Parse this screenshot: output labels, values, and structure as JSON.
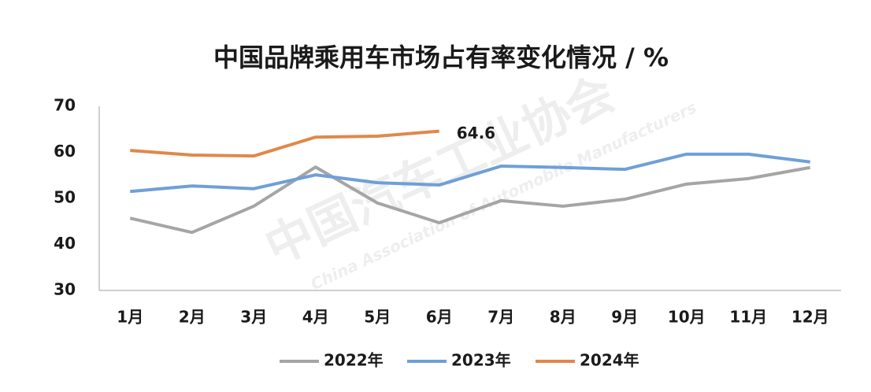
{
  "chart_data": {
    "type": "line",
    "title": "中国品牌乘用车市场占有率变化情况 / %",
    "watermark": [
      "中国汽车工业协会",
      "China Association of Automobile Manufacturers"
    ],
    "categories": [
      "1月",
      "2月",
      "3月",
      "4月",
      "5月",
      "6月",
      "7月",
      "8月",
      "9月",
      "10月",
      "11月",
      "12月"
    ],
    "series": [
      {
        "name": "2022年",
        "color": "#a5a5a5",
        "values": [
          45.7,
          42.6,
          48.3,
          56.8,
          49.0,
          44.7,
          49.5,
          48.3,
          49.8,
          53.1,
          54.3,
          56.7
        ]
      },
      {
        "name": "2023年",
        "color": "#6f9fd8",
        "values": [
          51.5,
          52.7,
          52.1,
          55.1,
          53.4,
          52.9,
          57.0,
          56.7,
          56.3,
          59.6,
          59.6,
          57.9
        ]
      },
      {
        "name": "2024年",
        "color": "#e0884a",
        "values": [
          60.4,
          59.4,
          59.2,
          63.3,
          63.5,
          64.6,
          null,
          null,
          null,
          null,
          null,
          null
        ]
      }
    ],
    "data_labels": [
      {
        "series": 2,
        "index": 5
      }
    ],
    "ylim": [
      30,
      70
    ],
    "yticks": [
      30,
      40,
      50,
      60,
      70
    ],
    "grid": false,
    "legend": "bottom"
  }
}
